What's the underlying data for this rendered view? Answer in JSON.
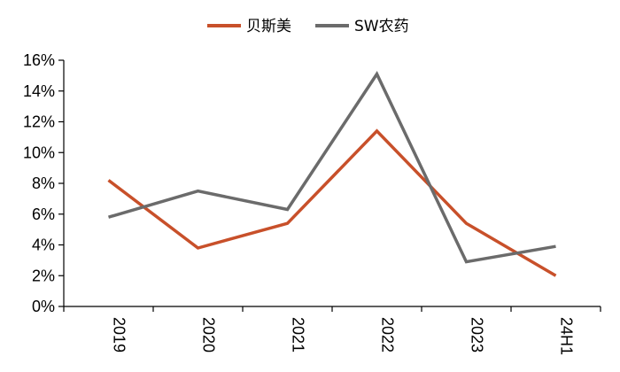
{
  "chart_data": {
    "type": "line",
    "title": "",
    "xlabel": "",
    "ylabel": "",
    "categories": [
      "2019",
      "2020",
      "2021",
      "2022",
      "2023",
      "24H1"
    ],
    "ylim": [
      0,
      16
    ],
    "yticks": [
      "0%",
      "2%",
      "4%",
      "6%",
      "8%",
      "10%",
      "12%",
      "14%",
      "16%"
    ],
    "ytick_values": [
      0,
      2,
      4,
      6,
      8,
      10,
      12,
      14,
      16
    ],
    "grid": false,
    "legend_position": "top-center",
    "series": [
      {
        "name": "贝斯美",
        "color": "#C8502A",
        "values": [
          8.2,
          3.8,
          5.4,
          11.4,
          5.4,
          2.0
        ]
      },
      {
        "name": "SW农药",
        "color": "#6B6B6B",
        "values": [
          5.8,
          7.5,
          6.3,
          15.1,
          2.9,
          3.9
        ]
      }
    ]
  }
}
